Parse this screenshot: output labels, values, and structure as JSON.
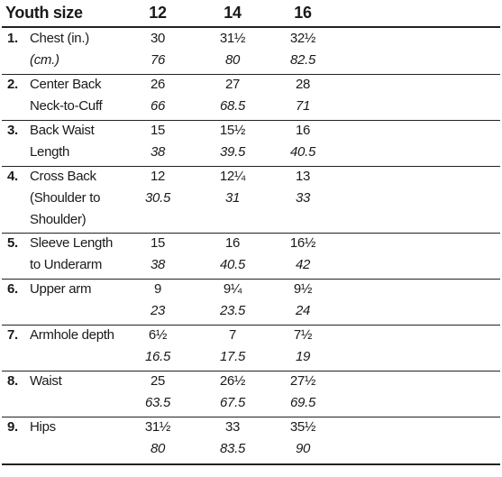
{
  "header": {
    "title": "Youth size",
    "sizes": [
      "12",
      "14",
      "16"
    ]
  },
  "rows": [
    {
      "number": "1.",
      "label": [
        "Chest (in.)",
        "(cm.)"
      ],
      "values": [
        [
          "30",
          "76"
        ],
        [
          "31½",
          "80"
        ],
        [
          "32½",
          "82.5"
        ]
      ]
    },
    {
      "number": "2.",
      "label": [
        "Center Back",
        "Neck-to-Cuff"
      ],
      "values": [
        [
          "26",
          "66"
        ],
        [
          "27",
          "68.5"
        ],
        [
          "28",
          "71"
        ]
      ]
    },
    {
      "number": "3.",
      "label": [
        "Back Waist",
        "Length"
      ],
      "values": [
        [
          "15",
          "38"
        ],
        [
          "15½",
          "39.5"
        ],
        [
          "16",
          "40.5"
        ]
      ]
    },
    {
      "number": "4.",
      "label": [
        "Cross Back",
        "(Shoulder to",
        "Shoulder)"
      ],
      "values": [
        [
          "12",
          "30.5"
        ],
        [
          "12¼",
          "31"
        ],
        [
          "13",
          "33"
        ]
      ]
    },
    {
      "number": "5.",
      "label": [
        "Sleeve Length",
        "to Underarm"
      ],
      "values": [
        [
          "15",
          "38"
        ],
        [
          "16",
          "40.5"
        ],
        [
          "16½",
          "42"
        ]
      ]
    },
    {
      "number": "6.",
      "label": [
        "Upper arm"
      ],
      "values": [
        [
          "9",
          "23"
        ],
        [
          "9¼",
          "23.5"
        ],
        [
          "9½",
          "24"
        ]
      ]
    },
    {
      "number": "7.",
      "label": [
        "Armhole depth"
      ],
      "values": [
        [
          "6½",
          "16.5"
        ],
        [
          "7",
          "17.5"
        ],
        [
          "7½",
          "19"
        ]
      ]
    },
    {
      "number": "8.",
      "label": [
        "Waist"
      ],
      "values": [
        [
          "25",
          "63.5"
        ],
        [
          "26½",
          "67.5"
        ],
        [
          "27½",
          "69.5"
        ]
      ]
    },
    {
      "number": "9.",
      "label": [
        "Hips"
      ],
      "values": [
        [
          "31½",
          "80"
        ],
        [
          "33",
          "83.5"
        ],
        [
          "35½",
          "90"
        ]
      ]
    }
  ]
}
